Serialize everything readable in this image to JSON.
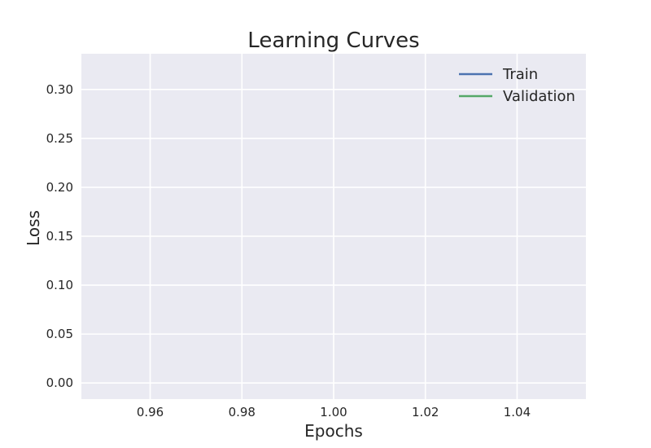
{
  "chart_data": {
    "type": "line",
    "title": "Learning Curves",
    "xlabel": "Epochs",
    "ylabel": "Loss",
    "xlim": [
      0.945,
      1.055
    ],
    "ylim": [
      -0.0165,
      0.3365
    ],
    "xticks": [
      0.96,
      0.98,
      1.0,
      1.02,
      1.04
    ],
    "xtick_labels": [
      "0.96",
      "0.98",
      "1.00",
      "1.02",
      "1.04"
    ],
    "yticks": [
      0.0,
      0.05,
      0.1,
      0.15,
      0.2,
      0.25,
      0.3
    ],
    "ytick_labels": [
      "0.00",
      "0.05",
      "0.10",
      "0.15",
      "0.20",
      "0.25",
      "0.30"
    ],
    "grid": true,
    "legend_position": "top-right",
    "background_color": "#eaeaf2",
    "grid_color": "#ffffff",
    "series": [
      {
        "name": "Train",
        "color": "#4c72b0",
        "x": [],
        "y": []
      },
      {
        "name": "Validation",
        "color": "#55a868",
        "x": [],
        "y": []
      }
    ]
  }
}
